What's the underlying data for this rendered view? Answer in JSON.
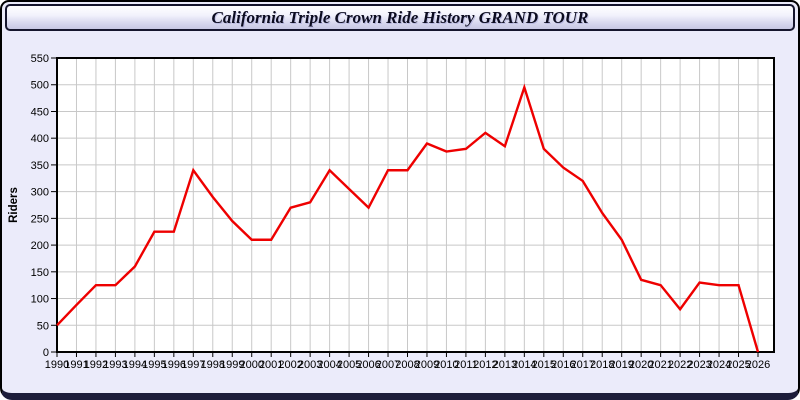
{
  "title": "California Triple Crown Ride History GRAND TOUR",
  "chart_data": {
    "type": "line",
    "title": "California Triple Crown Ride History GRAND TOUR",
    "xlabel": "",
    "ylabel": "Riders",
    "x": [
      1990,
      1991,
      1992,
      1993,
      1994,
      1995,
      1996,
      1997,
      1998,
      1999,
      2000,
      2001,
      2002,
      2003,
      2004,
      2005,
      2006,
      2007,
      2008,
      2009,
      2010,
      2011,
      2012,
      2013,
      2014,
      2015,
      2016,
      2017,
      2018,
      2019,
      2020,
      2021,
      2022,
      2023,
      2024,
      2025,
      2026
    ],
    "series": [
      {
        "name": "Riders",
        "values": [
          50,
          88,
          125,
          125,
          160,
          225,
          225,
          340,
          290,
          245,
          210,
          210,
          270,
          280,
          340,
          305,
          270,
          340,
          340,
          390,
          375,
          380,
          410,
          385,
          495,
          380,
          345,
          320,
          260,
          210,
          135,
          125,
          80,
          130,
          125,
          125,
          0
        ]
      }
    ],
    "ylim": [
      0,
      550
    ],
    "y_ticks": [
      0,
      50,
      100,
      150,
      200,
      250,
      300,
      350,
      400,
      450,
      500,
      550
    ],
    "grid": true,
    "legend": "none",
    "line_color": "#ee0000",
    "plot_bg": "#ffffff",
    "grid_color": "#c8c8c8",
    "axis_color": "#000000",
    "panel_bg": "#ebebfa"
  }
}
